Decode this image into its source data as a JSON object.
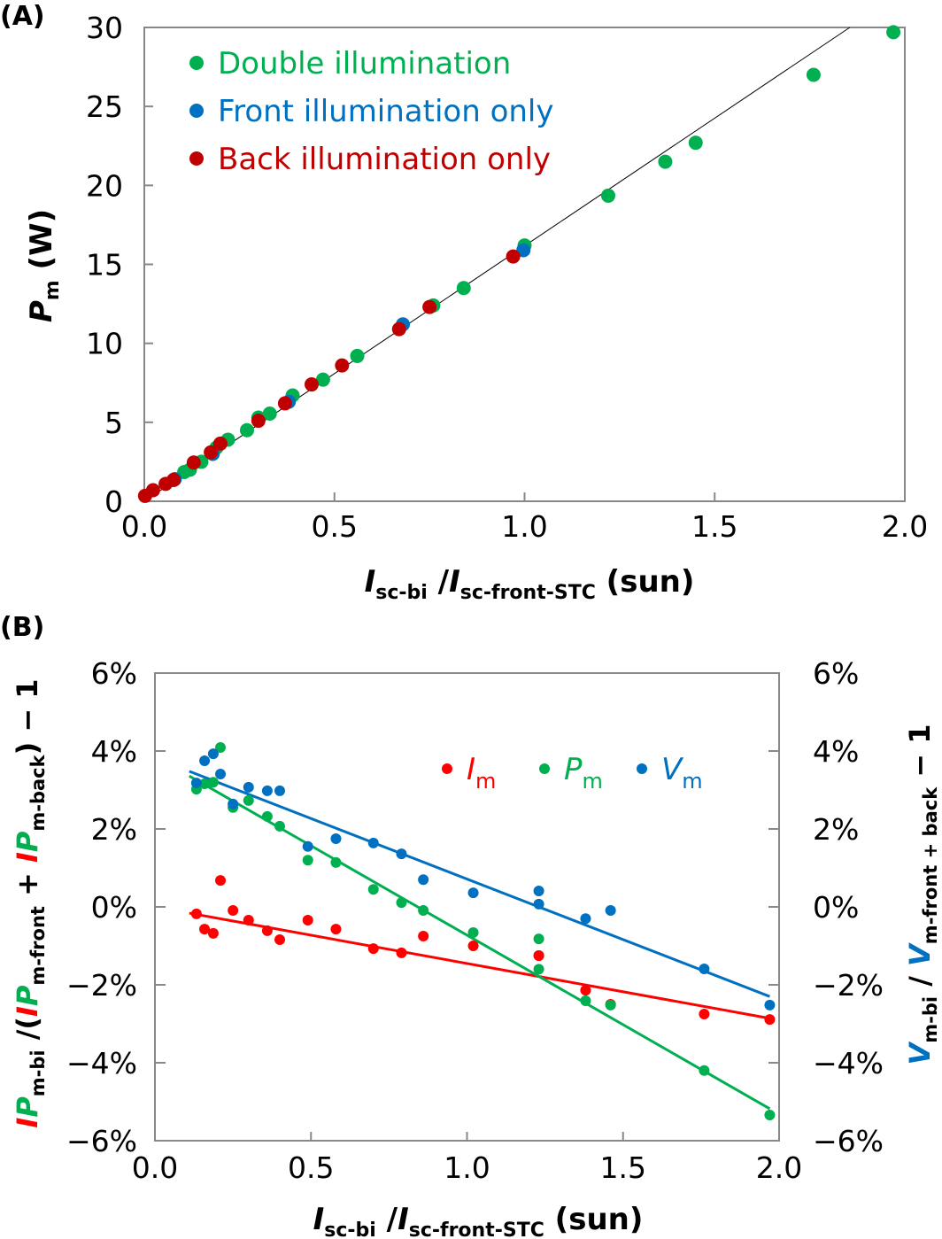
{
  "chart_data": [
    {
      "type": "scatter",
      "panel_label": "(A)",
      "xlabel": {
        "main1": "I",
        "sub1": "sc-bi",
        "sep": " /",
        "main2": "I",
        "sub2": "sc-front-STC",
        "unit": " (sun)"
      },
      "ylabel": {
        "main": "P",
        "sub": "m",
        "unit": " (W)"
      },
      "xlim": [
        0,
        2.0
      ],
      "ylim": [
        0,
        30
      ],
      "xticks": [
        "0.0",
        "0.5",
        "1.0",
        "1.5",
        "2.0"
      ],
      "yticks": [
        "0",
        "5",
        "10",
        "15",
        "20",
        "25",
        "30"
      ],
      "legend_position": "top-left",
      "series": [
        {
          "name": "Double illumination",
          "color": "#00b050",
          "points": [
            [
              0.105,
              1.85
            ],
            [
              0.12,
              2.0
            ],
            [
              0.15,
              2.5
            ],
            [
              0.19,
              3.4
            ],
            [
              0.22,
              3.9
            ],
            [
              0.27,
              4.5
            ],
            [
              0.3,
              5.3
            ],
            [
              0.33,
              5.55
            ],
            [
              0.39,
              6.7
            ],
            [
              0.47,
              7.7
            ],
            [
              0.56,
              9.2
            ],
            [
              0.76,
              12.4
            ],
            [
              0.84,
              13.5
            ],
            [
              1.0,
              16.2
            ],
            [
              1.22,
              19.35
            ],
            [
              1.37,
              21.5
            ],
            [
              1.45,
              22.7
            ],
            [
              1.76,
              27.0
            ],
            [
              1.97,
              29.7
            ]
          ]
        },
        {
          "name": "Front illumination only",
          "color": "#0070c0",
          "points": [
            [
              0.08,
              1.4
            ],
            [
              0.18,
              3.0
            ],
            [
              0.38,
              6.3
            ],
            [
              0.68,
              11.2
            ],
            [
              0.997,
              15.9
            ]
          ]
        },
        {
          "name": "Back illumination only",
          "color": "#c00000",
          "points": [
            [
              0.002,
              0.34
            ],
            [
              0.023,
              0.7
            ],
            [
              0.056,
              1.1
            ],
            [
              0.077,
              1.35
            ],
            [
              0.13,
              2.45
            ],
            [
              0.175,
              3.1
            ],
            [
              0.2,
              3.65
            ],
            [
              0.3,
              5.1
            ],
            [
              0.37,
              6.2
            ],
            [
              0.44,
              7.4
            ],
            [
              0.52,
              8.6
            ],
            [
              0.67,
              10.9
            ],
            [
              0.75,
              12.3
            ],
            [
              0.97,
              15.5
            ]
          ]
        }
      ],
      "fit_line": {
        "color": "#000000",
        "slope": 16.17,
        "intercept": 0
      }
    },
    {
      "type": "scatter",
      "panel_label": "(B)",
      "xlabel": {
        "main1": "I",
        "sub1": "sc-bi",
        "sep": " /",
        "main2": "I",
        "sub2": "sc-front-STC",
        "unit": " (sun)"
      },
      "ylabel_left": {
        "a": "I",
        "b": "P",
        "sub1": "m-bi",
        "mid": " /(",
        "c": "I",
        "d": "P",
        "sub2": "m-front",
        "plus": " + ",
        "e": "I",
        "f": "P",
        "sub3": "m-back",
        "end": ") − 1"
      },
      "ylabel_right": {
        "main1": "V",
        "sub1": "m-bi",
        "sep": " / ",
        "main2": "V",
        "sub2": "m-front + back",
        "end": " − 1"
      },
      "xlim": [
        0,
        2.0
      ],
      "ylim": [
        -6,
        6
      ],
      "xticks": [
        "0.0",
        "0.5",
        "1.0",
        "1.5",
        "2.0"
      ],
      "yticks": [
        "−6%",
        "−4%",
        "−2%",
        "0%",
        "2%",
        "4%",
        "6%"
      ],
      "legend_position": "top-right",
      "x": [
        0.133,
        0.159,
        0.187,
        0.21,
        0.25,
        0.3,
        0.36,
        0.4,
        0.49,
        0.58,
        0.7,
        0.79,
        0.86,
        1.02,
        1.23,
        1.23,
        1.38,
        1.46,
        1.76,
        1.97
      ],
      "series": [
        {
          "name": "I",
          "sub": "m",
          "color": "#ff0000",
          "values": [
            -0.18,
            -0.57,
            -0.68,
            0.68,
            -0.09,
            -0.34,
            -0.61,
            -0.84,
            -0.34,
            -0.57,
            -1.07,
            -1.18,
            -0.75,
            -1.0,
            -1.25,
            -1.25,
            -2.14,
            -2.5,
            -2.75,
            -2.89
          ],
          "fit": [
            [
              0.11,
              -0.16
            ],
            [
              1.97,
              -2.86
            ]
          ]
        },
        {
          "name": "P",
          "sub": "m",
          "color": "#00b050",
          "values": [
            3.02,
            3.16,
            3.2,
            4.09,
            2.55,
            2.73,
            2.32,
            2.07,
            1.2,
            1.14,
            0.45,
            0.11,
            -0.09,
            -0.66,
            -0.82,
            -1.6,
            -2.41,
            -2.52,
            -4.2,
            -5.34
          ],
          "fit": [
            [
              0.11,
              3.36
            ],
            [
              1.97,
              -5.18
            ]
          ]
        },
        {
          "name": "V",
          "sub": "m",
          "color": "#0070c0",
          "values": [
            3.18,
            3.75,
            3.93,
            3.41,
            2.64,
            3.07,
            2.98,
            2.98,
            1.55,
            1.75,
            1.64,
            1.36,
            0.7,
            0.36,
            0.41,
            0.07,
            -0.3,
            -0.09,
            -1.59,
            -2.52
          ],
          "fit": [
            [
              0.11,
              3.48
            ],
            [
              1.97,
              -2.3
            ]
          ]
        }
      ]
    }
  ]
}
